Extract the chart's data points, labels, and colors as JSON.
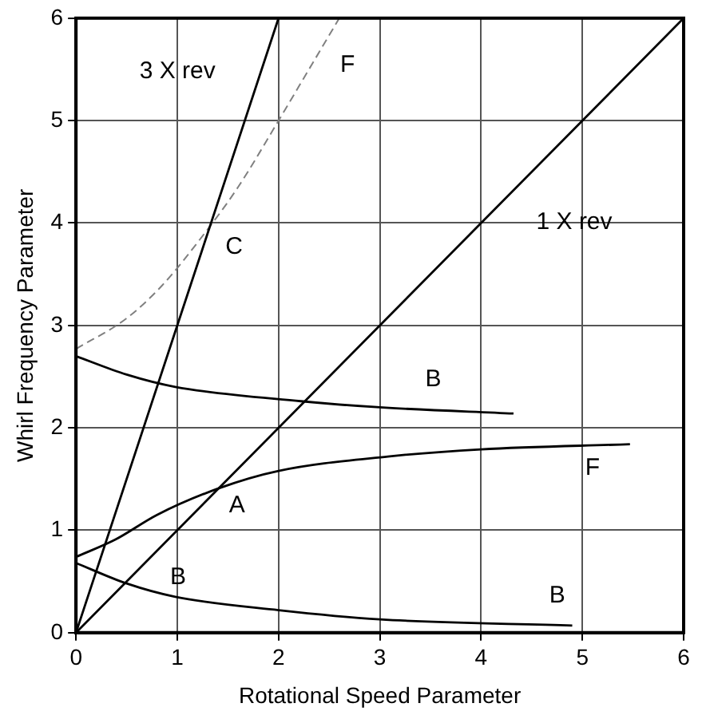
{
  "chart_data": {
    "type": "line",
    "xlabel": "Rotational Speed Parameter",
    "ylabel": "Whirl Frequency Parameter",
    "xlim": [
      0,
      6
    ],
    "ylim": [
      0,
      6
    ],
    "xticks": [
      0,
      1,
      2,
      3,
      4,
      5,
      6
    ],
    "yticks": [
      0,
      1,
      2,
      3,
      4,
      5,
      6
    ],
    "grid": true,
    "legend": false,
    "marker": "none",
    "series": [
      {
        "color": "#000000",
        "x": [
          0,
          2
        ],
        "values": [
          0,
          6
        ]
      },
      {
        "color": "#000000",
        "x": [
          0,
          6
        ],
        "values": [
          0,
          6
        ]
      },
      {
        "color": "#808080",
        "line_style": "dashed",
        "x": [
          0,
          0.5,
          0.85,
          1.27,
          1.6,
          2.0,
          2.3,
          2.6
        ],
        "values": [
          2.77,
          3.07,
          3.39,
          3.9,
          4.35,
          5.0,
          5.5,
          6
        ]
      },
      {
        "color": "#000000",
        "x": [
          0,
          0.5,
          0.98,
          2.22,
          3.0,
          4.32
        ],
        "values": [
          2.7,
          2.52,
          2.4,
          2.26,
          2.2,
          2.14
        ]
      },
      {
        "color": "#000000",
        "x": [
          0,
          0.39,
          0.8,
          1.41,
          2.0,
          3.08,
          4.0,
          5.47
        ],
        "values": [
          0.74,
          0.91,
          1.15,
          1.41,
          1.58,
          1.72,
          1.79,
          1.84
        ]
      },
      {
        "color": "#000000",
        "x": [
          0,
          0.5,
          0.98,
          2.0,
          3.0,
          4.9
        ],
        "values": [
          0.68,
          0.48,
          0.35,
          0.22,
          0.13,
          0.07
        ]
      }
    ],
    "annotations": [
      "3 X rev",
      "F",
      "C",
      "1 X rev",
      "B",
      "F",
      "A",
      "B",
      "B"
    ]
  }
}
